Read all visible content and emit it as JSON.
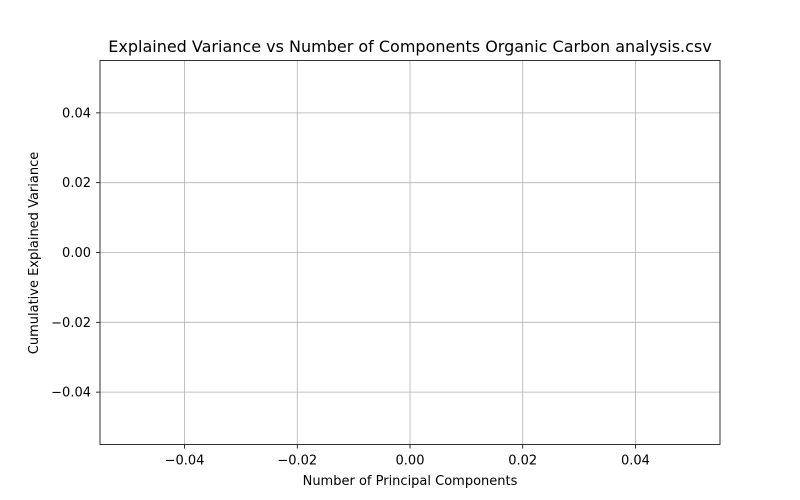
{
  "chart_data": {
    "type": "line",
    "title": "Explained Variance vs Number of Components Organic Carbon analysis.csv",
    "xlabel": "Number of Principal Components",
    "ylabel": "Cumulative Explained Variance",
    "xlim": [
      -0.055,
      0.055
    ],
    "ylim": [
      -0.055,
      0.055
    ],
    "xticks": [
      -0.04,
      -0.02,
      0.0,
      0.02,
      0.04
    ],
    "yticks": [
      -0.04,
      -0.02,
      0.0,
      0.02,
      0.04
    ],
    "xtick_labels": [
      "−0.04",
      "−0.02",
      "0.00",
      "0.02",
      "0.04"
    ],
    "ytick_labels": [
      "−0.04",
      "−0.02",
      "0.00",
      "0.02",
      "0.04"
    ],
    "grid": true,
    "series": [
      {
        "x": [],
        "y": []
      }
    ]
  }
}
